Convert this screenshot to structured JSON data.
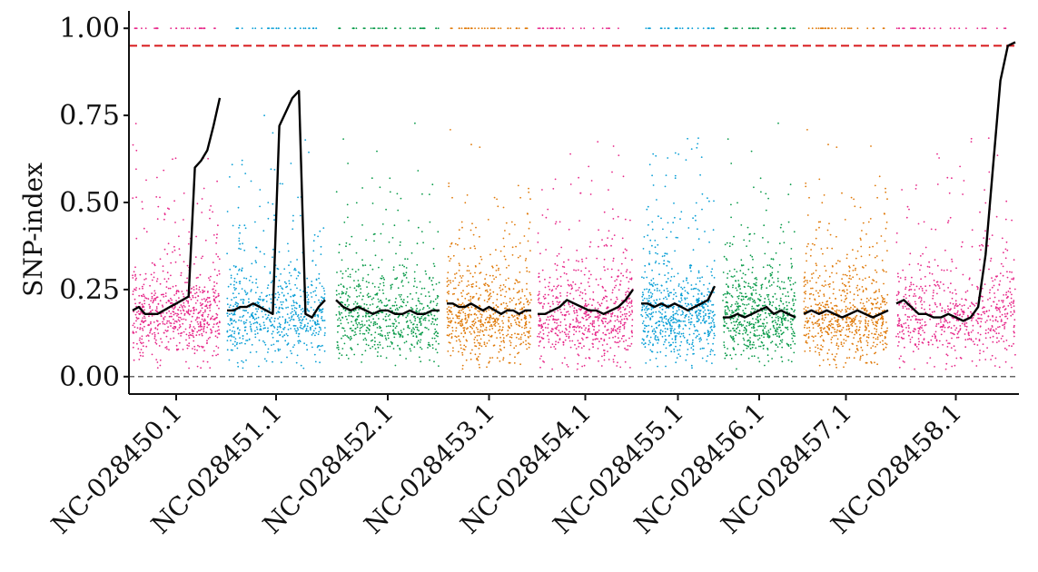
{
  "chart_data": {
    "type": "scatter",
    "ylabel": "SNP-index",
    "xlabel": "",
    "ylim": [
      -0.05,
      1.05
    ],
    "yticks": [
      "0.00",
      "0.25",
      "0.50",
      "0.75",
      "1.00"
    ],
    "ytick_values": [
      0,
      0.25,
      0.5,
      0.75,
      1.0
    ],
    "grid": false,
    "threshold_line": {
      "value": 0.95,
      "color": "#d7191c",
      "style": "dashed"
    },
    "baseline_line": {
      "value": 0.0,
      "color": "#333333",
      "style": "dashed"
    },
    "trend_color": "#000000",
    "chromosomes": [
      {
        "name": "NC-028450.1",
        "color": "#e7298a",
        "trend": [
          0.19,
          0.2,
          0.18,
          0.18,
          0.18,
          0.19,
          0.2,
          0.21,
          0.22,
          0.23,
          0.6,
          0.62,
          0.65,
          0.72,
          0.8
        ]
      },
      {
        "name": "NC-028451.1",
        "color": "#0a9fd6",
        "trend": [
          0.19,
          0.19,
          0.2,
          0.2,
          0.21,
          0.2,
          0.19,
          0.18,
          0.72,
          0.76,
          0.8,
          0.82,
          0.18,
          0.17,
          0.2,
          0.22
        ]
      },
      {
        "name": "NC-028452.1",
        "color": "#0a9b4a",
        "trend": [
          0.22,
          0.2,
          0.19,
          0.2,
          0.19,
          0.18,
          0.19,
          0.19,
          0.18,
          0.18,
          0.19,
          0.18,
          0.18,
          0.19,
          0.19
        ]
      },
      {
        "name": "NC-028453.1",
        "color": "#e07a0a",
        "trend": [
          0.21,
          0.21,
          0.2,
          0.2,
          0.21,
          0.2,
          0.19,
          0.2,
          0.19,
          0.18,
          0.19,
          0.19,
          0.18,
          0.19,
          0.19
        ]
      },
      {
        "name": "NC-028454.1",
        "color": "#e7298a",
        "trend": [
          0.18,
          0.18,
          0.19,
          0.2,
          0.22,
          0.21,
          0.2,
          0.19,
          0.19,
          0.18,
          0.19,
          0.2,
          0.22,
          0.25
        ]
      },
      {
        "name": "NC-028455.1",
        "color": "#0a9fd6",
        "trend": [
          0.21,
          0.21,
          0.2,
          0.21,
          0.2,
          0.21,
          0.2,
          0.19,
          0.2,
          0.21,
          0.22,
          0.26
        ]
      },
      {
        "name": "NC-028456.1",
        "color": "#0a9b4a",
        "trend": [
          0.17,
          0.17,
          0.18,
          0.17,
          0.18,
          0.19,
          0.2,
          0.18,
          0.19,
          0.18,
          0.17
        ]
      },
      {
        "name": "NC-028457.1",
        "color": "#e07a0a",
        "trend": [
          0.18,
          0.19,
          0.18,
          0.19,
          0.18,
          0.17,
          0.18,
          0.19,
          0.18,
          0.17,
          0.18,
          0.19
        ]
      },
      {
        "name": "NC-028458.1",
        "color": "#e7298a",
        "trend": [
          0.21,
          0.22,
          0.2,
          0.18,
          0.18,
          0.17,
          0.17,
          0.18,
          0.17,
          0.16,
          0.17,
          0.2,
          0.35,
          0.6,
          0.85,
          0.95,
          0.96
        ]
      }
    ]
  }
}
